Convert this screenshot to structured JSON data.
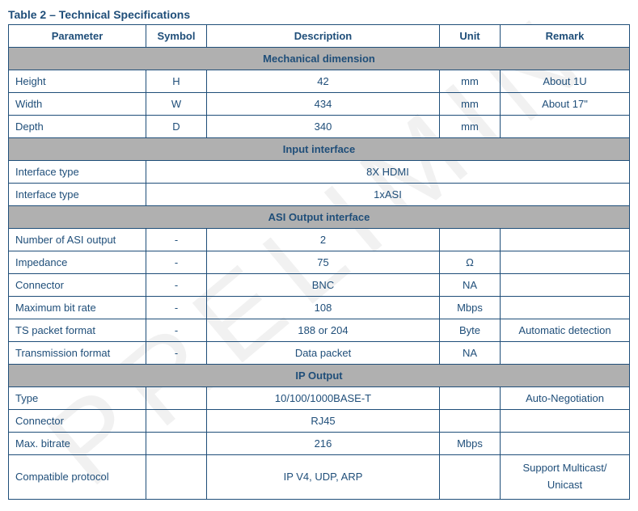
{
  "title": "Table 2 – Technical Specifications",
  "headers": {
    "parameter": "Parameter",
    "symbol": "Symbol",
    "description": "Description",
    "unit": "Unit",
    "remark": "Remark"
  },
  "sections": [
    {
      "name": "Mechanical dimension",
      "rows": [
        {
          "parameter": "Height",
          "symbol": "H",
          "description": "42",
          "unit": "mm",
          "remark": "About 1U"
        },
        {
          "parameter": "Width",
          "symbol": "W",
          "description": "434",
          "unit": "mm",
          "remark": "About 17\""
        },
        {
          "parameter": "Depth",
          "symbol": "D",
          "description": "340",
          "unit": "mm",
          "remark": ""
        }
      ]
    },
    {
      "name": "Input interface",
      "rows": [
        {
          "parameter": "Interface type",
          "symbol": "",
          "description": "8X HDMI",
          "unit": "",
          "remark": "",
          "merged": true
        },
        {
          "parameter": "Interface type",
          "symbol": "",
          "description": "1xASI",
          "unit": "",
          "remark": "",
          "merged": true
        }
      ]
    },
    {
      "name": "ASI Output interface",
      "rows": [
        {
          "parameter": "Number of ASI output",
          "symbol": "-",
          "description": "2",
          "unit": "",
          "remark": ""
        },
        {
          "parameter": "Impedance",
          "symbol": "-",
          "description": "75",
          "unit": "Ω",
          "remark": ""
        },
        {
          "parameter": "Connector",
          "symbol": "-",
          "description": "BNC",
          "unit": "NA",
          "remark": ""
        },
        {
          "parameter": "Maximum bit rate",
          "symbol": "-",
          "description": "108",
          "unit": "Mbps",
          "remark": ""
        },
        {
          "parameter": "TS packet format",
          "symbol": "-",
          "description": "188 or 204",
          "unit": "Byte",
          "remark": "Automatic detection"
        },
        {
          "parameter": "Transmission format",
          "symbol": "-",
          "description": "Data packet",
          "unit": "NA",
          "remark": ""
        }
      ]
    },
    {
      "name": "IP Output",
      "rows": [
        {
          "parameter": "Type",
          "symbol": "",
          "description": "10/100/1000BASE-T",
          "unit": "",
          "remark": "Auto-Negotiation"
        },
        {
          "parameter": "Connector",
          "symbol": "",
          "description": "RJ45",
          "unit": "",
          "remark": ""
        },
        {
          "parameter": "Max. bitrate",
          "symbol": "",
          "description": "216",
          "unit": "Mbps",
          "remark": ""
        },
        {
          "parameter": "Compatible protocol",
          "symbol": "",
          "description": "IP V4, UDP, ARP",
          "unit": "",
          "remark": "Support Multicast/ Unicast",
          "multiline": true
        }
      ]
    }
  ],
  "styling": {
    "border_color": "#1f4e79",
    "text_color": "#1f4e79",
    "section_bg": "#b0b0b0",
    "header_bg": "#ffffff",
    "font_family": "Arial",
    "title_fontsize": 14,
    "cell_fontsize": 13,
    "column_widths": {
      "parameter": 170,
      "symbol": 75,
      "unit": 75,
      "remark": 160
    }
  }
}
